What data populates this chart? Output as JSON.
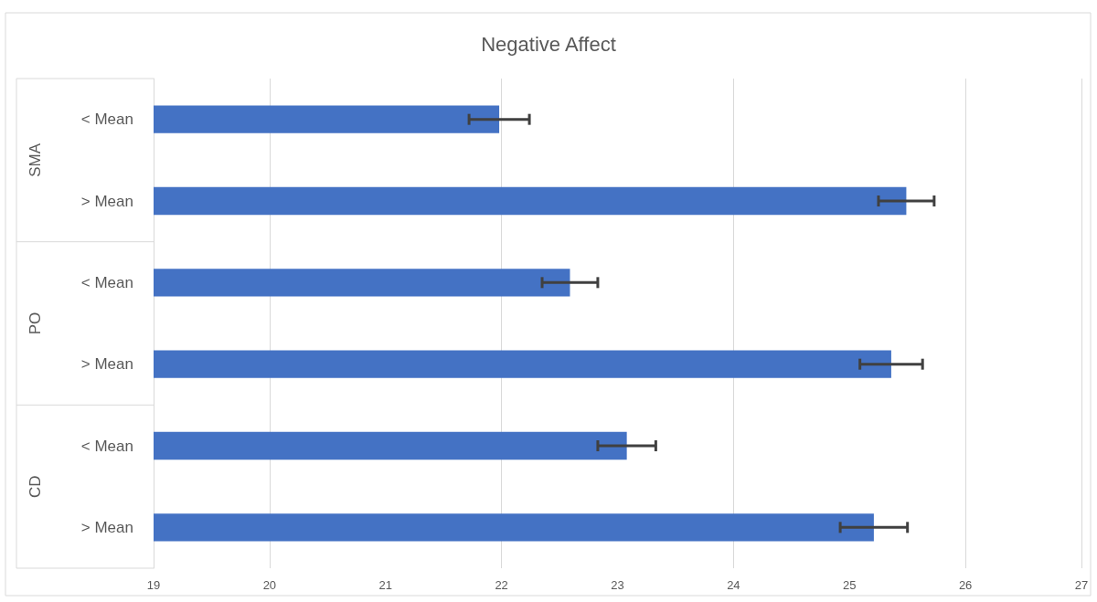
{
  "chart_data": {
    "type": "bar",
    "title": "Negative Affect",
    "orientation": "horizontal",
    "categories": [
      "< Mean",
      "> Mean",
      "< Mean",
      "> Mean",
      "< Mean",
      "> Mean"
    ],
    "annotations": [
      "SMA",
      "PO",
      "CD"
    ],
    "series": [
      {
        "color": "#4472c4",
        "values": [
          21.98,
          25.49,
          22.59,
          25.36,
          23.08,
          25.21
        ],
        "errors": [
          0.26,
          0.24,
          0.24,
          0.27,
          0.25,
          0.29
        ]
      }
    ],
    "xlim": [
      19,
      27
    ],
    "xticks": [
      19,
      20,
      21,
      22,
      23,
      24,
      25,
      26,
      27
    ],
    "grid": "x"
  }
}
